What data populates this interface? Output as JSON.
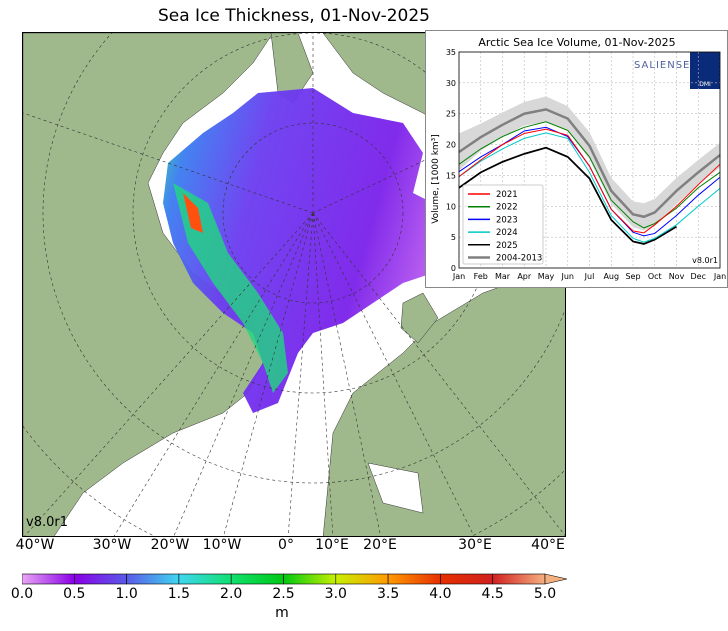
{
  "title": "Sea Ice Thickness, 01-Nov-2025",
  "version_label": "v8.0r1",
  "longitude_labels": [
    "40°W",
    "30°W",
    "20°W",
    "10°W",
    "0°",
    "10°E",
    "20°E",
    "30°E",
    "40°E"
  ],
  "colorbar": {
    "ticks": [
      "0.0",
      "0.5",
      "1.0",
      "1.5",
      "2.0",
      "2.5",
      "3.0",
      "3.5",
      "4.0",
      "4.5",
      "5.0"
    ],
    "unit": "m",
    "colors": [
      "#e9a6f5",
      "#8a00e6",
      "#5a5ae8",
      "#3fd6f0",
      "#10e070",
      "#00c814",
      "#c8f000",
      "#ff9a00",
      "#e63000",
      "#d02020",
      "#f5b080"
    ]
  },
  "colors": {
    "land": "#9fb98d",
    "ocean": "#ffffff",
    "rivers": "#8ab0e0"
  },
  "chart_data": {
    "type": "line",
    "title": "Arctic Sea Ice Volume, 01-Nov-2025",
    "ylabel": "Volume, [1000 km³]",
    "xlabel": "",
    "ylim": [
      0,
      35
    ],
    "yticks": [
      "0",
      "5",
      "10",
      "15",
      "20",
      "25",
      "30",
      "35"
    ],
    "xticks": [
      "Jan",
      "Feb",
      "Mar",
      "Apr",
      "May",
      "Jun",
      "Jul",
      "Aug",
      "Sep",
      "Oct",
      "Nov",
      "Dec",
      "Jan"
    ],
    "grid": true,
    "legend": "lower-left",
    "logo_text": "SALIENSEAS",
    "logo2_text": "DMI",
    "version": "v8.0r1",
    "x_months": [
      0,
      1,
      2,
      3,
      4,
      5,
      6,
      7,
      8,
      8.5,
      9,
      10,
      11,
      12
    ],
    "series": [
      {
        "name": "2021",
        "color": "#ff0000",
        "values": [
          14.8,
          17.5,
          20,
          21.8,
          22.5,
          21.5,
          16.5,
          9.5,
          6,
          5.7,
          7,
          10,
          13.5,
          16.8
        ]
      },
      {
        "name": "2022",
        "color": "#008000",
        "values": [
          16.8,
          19.3,
          21.3,
          22.8,
          23.7,
          22.3,
          18,
          11,
          7.5,
          6.5,
          7.2,
          9.7,
          13,
          15.5
        ]
      },
      {
        "name": "2023",
        "color": "#0000ff",
        "values": [
          15.6,
          18,
          20,
          22.2,
          22.8,
          21.3,
          16.5,
          9.5,
          5.8,
          5.2,
          5.6,
          8.5,
          11.8,
          14.7
        ]
      },
      {
        "name": "2024",
        "color": "#00c8c8",
        "values": [
          14.8,
          17.3,
          19.3,
          21,
          21.9,
          21,
          15.5,
          8.5,
          4.8,
          4.2,
          4.8,
          7,
          10,
          12.9
        ]
      },
      {
        "name": "2025",
        "color": "#000000",
        "values": [
          13,
          15.5,
          17.2,
          18.5,
          19.5,
          18,
          14.5,
          7.8,
          4.3,
          3.9,
          4.6,
          6.7,
          null,
          null
        ]
      },
      {
        "name": "2004-2013",
        "color": "#808080",
        "values": [
          18.8,
          21.2,
          23.2,
          25,
          25.7,
          24.2,
          19.8,
          12.5,
          8.7,
          8.3,
          9,
          12.5,
          15.5,
          18.3
        ]
      }
    ],
    "band_2004_2013": {
      "upper": [
        21.8,
        23.4,
        25.2,
        26.9,
        27.8,
        26.2,
        22,
        14.6,
        10.8,
        10.5,
        11.2,
        14.6,
        17.5,
        20.3
      ],
      "lower": [
        15.8,
        19,
        21.2,
        23.1,
        23.6,
        22.2,
        17.6,
        10.4,
        6.6,
        6.1,
        6.8,
        10.4,
        13.5,
        16.3
      ]
    }
  }
}
